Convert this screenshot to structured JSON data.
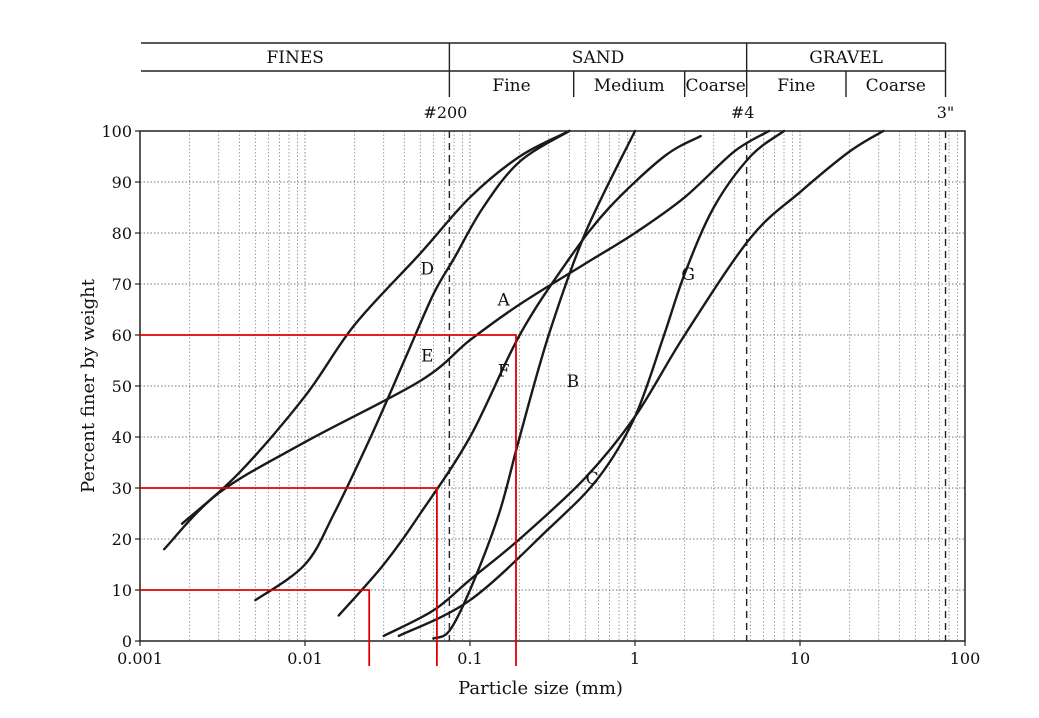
{
  "chart_data": {
    "type": "line",
    "x_scale": "log",
    "xlim": [
      0.001,
      100
    ],
    "ylim": [
      0,
      100
    ],
    "xlabel": "Particle size (mm)",
    "ylabel": "Percent finer by weight",
    "x_ticks": [
      {
        "value": 0.001,
        "label": "0.001"
      },
      {
        "value": 0.01,
        "label": "0.01"
      },
      {
        "value": 0.1,
        "label": "0.1"
      },
      {
        "value": 1,
        "label": "1"
      },
      {
        "value": 10,
        "label": "10"
      },
      {
        "value": 100,
        "label": "100"
      }
    ],
    "y_ticks": [
      0,
      10,
      20,
      30,
      40,
      50,
      60,
      70,
      80,
      90,
      100
    ],
    "grid": true,
    "classification": {
      "groups": [
        {
          "label": "FINES",
          "from": 0.001,
          "to": 0.075
        },
        {
          "label": "SAND",
          "from": 0.075,
          "to": 4.75
        },
        {
          "label": "GRAVEL",
          "from": 4.75,
          "to": 76.2
        }
      ],
      "subgroups": [
        {
          "label": "Fine",
          "from": 0.075,
          "to": 0.425
        },
        {
          "label": "Medium",
          "from": 0.425,
          "to": 2.0
        },
        {
          "label": "Coarse",
          "from": 2.0,
          "to": 4.75
        },
        {
          "label": "Fine",
          "from": 4.75,
          "to": 19.0
        },
        {
          "label": "Coarse",
          "from": 19.0,
          "to": 76.2
        }
      ]
    },
    "sieve_lines": [
      {
        "label": "#200",
        "x": 0.075
      },
      {
        "label": "#4",
        "x": 4.75
      },
      {
        "label": "3\"",
        "x": 76.2
      }
    ],
    "series": [
      {
        "name": "A",
        "points": [
          [
            0.0014,
            18
          ],
          [
            0.003,
            29
          ],
          [
            0.01,
            39
          ],
          [
            0.05,
            51
          ],
          [
            0.1,
            59
          ],
          [
            0.2,
            66
          ],
          [
            0.5,
            74
          ],
          [
            1,
            80
          ],
          [
            2,
            87
          ],
          [
            4,
            96
          ],
          [
            6.5,
            100
          ]
        ]
      },
      {
        "name": "B",
        "points": [
          [
            0.06,
            0.5
          ],
          [
            0.075,
            2
          ],
          [
            0.1,
            10
          ],
          [
            0.15,
            25
          ],
          [
            0.2,
            40
          ],
          [
            0.3,
            60
          ],
          [
            0.5,
            80
          ],
          [
            1,
            100
          ]
        ]
      },
      {
        "name": "C",
        "points": [
          [
            0.03,
            1
          ],
          [
            0.06,
            6
          ],
          [
            0.1,
            12
          ],
          [
            0.2,
            20
          ],
          [
            0.5,
            32
          ],
          [
            1,
            44
          ],
          [
            2,
            60
          ],
          [
            5,
            79
          ],
          [
            10,
            88
          ],
          [
            20,
            96
          ],
          [
            32,
            100
          ]
        ]
      },
      {
        "name": "D",
        "points": [
          [
            0.0018,
            23
          ],
          [
            0.004,
            33
          ],
          [
            0.01,
            48
          ],
          [
            0.02,
            62
          ],
          [
            0.05,
            76
          ],
          [
            0.1,
            87
          ],
          [
            0.2,
            95
          ],
          [
            0.4,
            100
          ]
        ]
      },
      {
        "name": "E",
        "points": [
          [
            0.005,
            8
          ],
          [
            0.01,
            15
          ],
          [
            0.015,
            25
          ],
          [
            0.025,
            40
          ],
          [
            0.04,
            55
          ],
          [
            0.06,
            68
          ],
          [
            0.08,
            75
          ],
          [
            0.12,
            85
          ],
          [
            0.2,
            94
          ],
          [
            0.4,
            100
          ]
        ]
      },
      {
        "name": "F",
        "points": [
          [
            0.016,
            5
          ],
          [
            0.03,
            15
          ],
          [
            0.05,
            25
          ],
          [
            0.1,
            40
          ],
          [
            0.2,
            60
          ],
          [
            0.4,
            75
          ],
          [
            0.7,
            85
          ],
          [
            1.5,
            95
          ],
          [
            2.5,
            99
          ]
        ]
      },
      {
        "name": "G",
        "points": [
          [
            0.037,
            1
          ],
          [
            0.1,
            8
          ],
          [
            0.3,
            22
          ],
          [
            0.6,
            32
          ],
          [
            1,
            44
          ],
          [
            1.5,
            60
          ],
          [
            2,
            72
          ],
          [
            3,
            85
          ],
          [
            5,
            95
          ],
          [
            8,
            100
          ]
        ]
      }
    ],
    "curve_labels": [
      {
        "text": "A",
        "x": 0.16,
        "y": 67
      },
      {
        "text": "B",
        "x": 0.42,
        "y": 51
      },
      {
        "text": "C",
        "x": 0.55,
        "y": 32
      },
      {
        "text": "D",
        "x": 0.055,
        "y": 73
      },
      {
        "text": "E",
        "x": 0.055,
        "y": 56
      },
      {
        "text": "F",
        "x": 0.16,
        "y": 53
      },
      {
        "text": "G",
        "x": 2.1,
        "y": 72
      }
    ],
    "reference_lines": [
      {
        "y": 60,
        "x": 0.19
      },
      {
        "y": 30,
        "x": 0.063
      },
      {
        "y": 10,
        "x": 0.0245
      }
    ],
    "reference_color": "#e00000"
  }
}
